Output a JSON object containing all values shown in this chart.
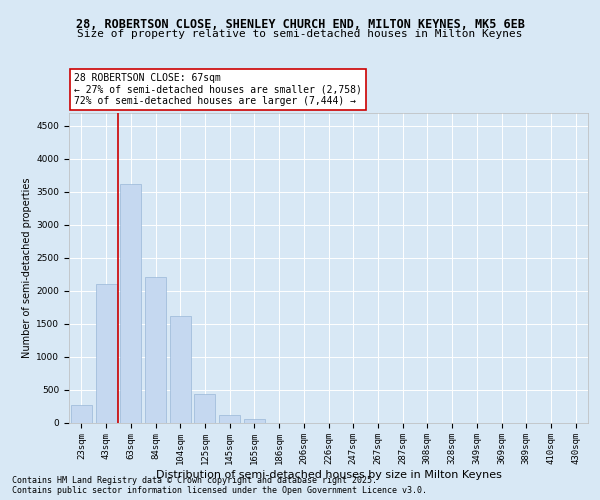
{
  "title_line1": "28, ROBERTSON CLOSE, SHENLEY CHURCH END, MILTON KEYNES, MK5 6EB",
  "title_line2": "Size of property relative to semi-detached houses in Milton Keynes",
  "xlabel": "Distribution of semi-detached houses by size in Milton Keynes",
  "ylabel": "Number of semi-detached properties",
  "categories": [
    "23sqm",
    "43sqm",
    "63sqm",
    "84sqm",
    "104sqm",
    "125sqm",
    "145sqm",
    "165sqm",
    "186sqm",
    "206sqm",
    "226sqm",
    "247sqm",
    "267sqm",
    "287sqm",
    "308sqm",
    "328sqm",
    "349sqm",
    "369sqm",
    "389sqm",
    "410sqm",
    "430sqm"
  ],
  "values": [
    270,
    2100,
    3620,
    2200,
    1620,
    430,
    110,
    50,
    0,
    0,
    0,
    0,
    0,
    0,
    0,
    0,
    0,
    0,
    0,
    0,
    0
  ],
  "bar_color": "#c5d8f0",
  "bar_edge_color": "#9ab8d8",
  "vline_x": 1.5,
  "vline_color": "#cc0000",
  "annotation_text": "28 ROBERTSON CLOSE: 67sqm\n← 27% of semi-detached houses are smaller (2,758)\n72% of semi-detached houses are larger (7,444) →",
  "annotation_box_facecolor": "#ffffff",
  "annotation_box_edgecolor": "#cc0000",
  "ylim": [
    0,
    4700
  ],
  "yticks": [
    0,
    500,
    1000,
    1500,
    2000,
    2500,
    3000,
    3500,
    4000,
    4500
  ],
  "bg_color": "#d8e8f5",
  "plot_bg_color": "#d8e8f5",
  "grid_color": "#ffffff",
  "footer_text": "Contains HM Land Registry data © Crown copyright and database right 2025.\nContains public sector information licensed under the Open Government Licence v3.0.",
  "title_fontsize": 8.5,
  "subtitle_fontsize": 8,
  "ylabel_fontsize": 7,
  "xlabel_fontsize": 8,
  "tick_fontsize": 6.5,
  "annotation_fontsize": 7,
  "footer_fontsize": 6
}
